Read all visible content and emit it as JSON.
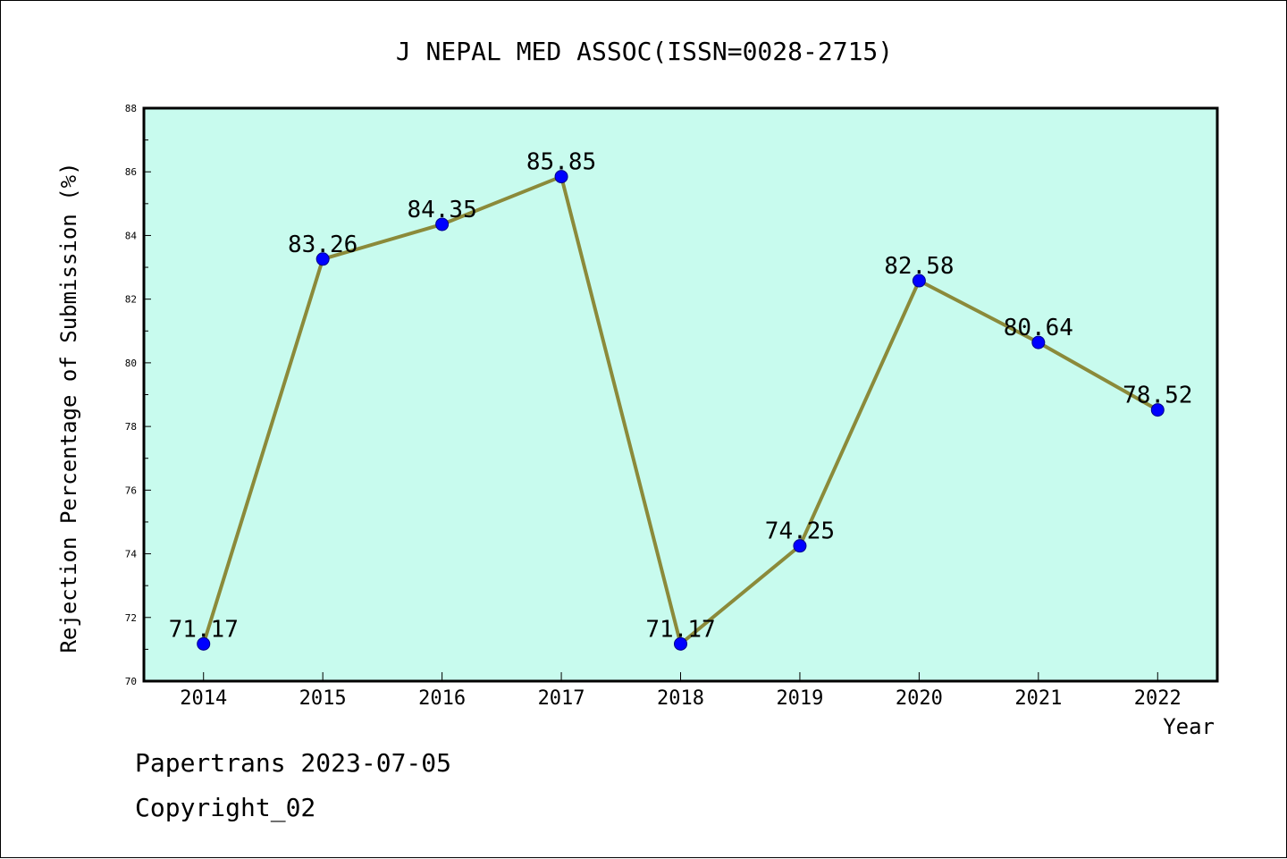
{
  "chart_data": {
    "type": "line",
    "title": "J NEPAL MED ASSOC(ISSN=0028-2715)",
    "xlabel": "Year",
    "ylabel": "Rejection Percentage of Submission (%)",
    "categories": [
      "2014",
      "2015",
      "2016",
      "2017",
      "2018",
      "2019",
      "2020",
      "2021",
      "2022"
    ],
    "values": [
      71.17,
      83.26,
      84.35,
      85.85,
      71.17,
      74.25,
      82.58,
      80.64,
      78.52
    ],
    "data_labels": [
      "71.17",
      "83.26",
      "84.35",
      "85.85",
      "71.17",
      "74.25",
      "82.58",
      "80.64",
      "78.52"
    ],
    "ylim": [
      70,
      88
    ],
    "yticks": [
      70,
      72,
      74,
      76,
      78,
      80,
      82,
      84,
      86,
      88
    ],
    "grid": false,
    "colors": {
      "plot_background": "#c8fbee",
      "line": "#8b8a3a",
      "marker": "#0000ff"
    }
  },
  "footer": {
    "source": "Papertrans 2023-07-05",
    "copyright": "Copyright_02"
  }
}
